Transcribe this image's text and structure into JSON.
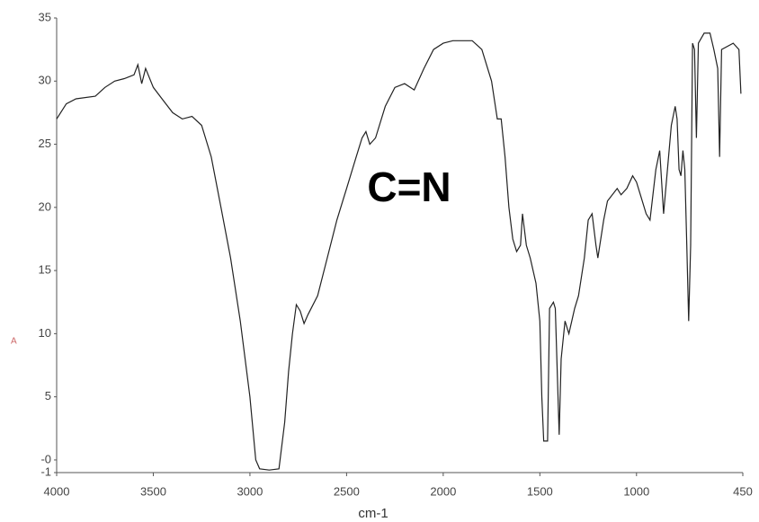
{
  "chart_data": {
    "type": "line",
    "annotation": "C=N",
    "x_label": "cm-1",
    "y_label": "A",
    "xlim": [
      4000,
      450
    ],
    "ylim": [
      -1,
      35
    ],
    "xticks": [
      4000,
      3500,
      3000,
      2500,
      2000,
      1500,
      1000,
      450
    ],
    "yticks": [
      35,
      30,
      25,
      20,
      15,
      10,
      5,
      {
        "value": 0,
        "label": "-0"
      },
      -1
    ],
    "series": [
      {
        "color": "#222222",
        "x": [
          4000,
          3950,
          3900,
          3800,
          3750,
          3700,
          3650,
          3600,
          3580,
          3560,
          3540,
          3500,
          3450,
          3400,
          3350,
          3300,
          3250,
          3200,
          3150,
          3100,
          3050,
          3000,
          2970,
          2950,
          2900,
          2850,
          2820,
          2800,
          2780,
          2760,
          2740,
          2720,
          2700,
          2650,
          2600,
          2550,
          2500,
          2450,
          2420,
          2400,
          2380,
          2350,
          2300,
          2250,
          2200,
          2150,
          2100,
          2050,
          2000,
          1950,
          1900,
          1850,
          1800,
          1750,
          1720,
          1700,
          1680,
          1660,
          1640,
          1620,
          1600,
          1590,
          1570,
          1550,
          1520,
          1500,
          1490,
          1480,
          1460,
          1450,
          1430,
          1420,
          1400,
          1390,
          1370,
          1350,
          1320,
          1300,
          1270,
          1250,
          1230,
          1210,
          1200,
          1170,
          1150,
          1100,
          1080,
          1050,
          1020,
          1000,
          980,
          950,
          930,
          900,
          880,
          860,
          840,
          820,
          800,
          790,
          780,
          770,
          760,
          750,
          740,
          730,
          720,
          710,
          700,
          690,
          680,
          650,
          620,
          600,
          580,
          570,
          560,
          500,
          470,
          460
        ],
        "values": [
          27,
          28.2,
          28.6,
          28.8,
          29.5,
          30,
          30.2,
          30.5,
          31.3,
          29.8,
          31,
          29.5,
          28.5,
          27.5,
          27,
          27.2,
          26.5,
          24,
          20,
          16,
          11,
          5,
          0,
          -0.7,
          -0.8,
          -0.7,
          3,
          7,
          10,
          12.3,
          11.8,
          10.8,
          11.5,
          13,
          16,
          19,
          21.5,
          24,
          25.5,
          26,
          25,
          25.5,
          28,
          29.5,
          29.8,
          29.3,
          31,
          32.5,
          33,
          33.2,
          33.2,
          33.2,
          32.5,
          30,
          27,
          27,
          24,
          20,
          17.5,
          16.5,
          17,
          19.5,
          17,
          16,
          14,
          11,
          5,
          1.5,
          1.5,
          12,
          12.5,
          12,
          2,
          8,
          11,
          10,
          12,
          13,
          16,
          19,
          19.5,
          17,
          16,
          19,
          20.5,
          21.5,
          21,
          21.5,
          22.5,
          22,
          21,
          19.5,
          19,
          23,
          24.5,
          19.5,
          23,
          26.5,
          28,
          27,
          23,
          22.5,
          24.5,
          23,
          17,
          11,
          17,
          33,
          32.5,
          25.5,
          33,
          33.8,
          33.8,
          32.5,
          31,
          24,
          32.5,
          33,
          32.5,
          29
        ]
      }
    ]
  }
}
